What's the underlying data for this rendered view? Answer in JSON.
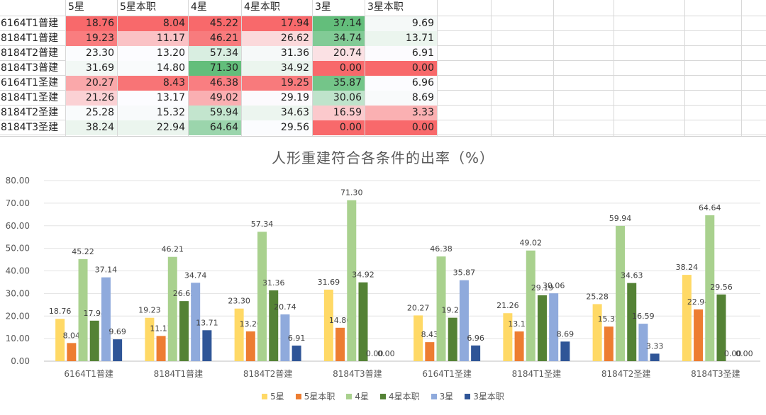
{
  "sheet": {
    "headers": [
      "5星",
      "5星本职",
      "4星",
      "4星本职",
      "3星",
      "3星本职"
    ]
  },
  "chart_data": {
    "type": "bar",
    "title": "人形重建符合各条件的出率（%）",
    "categories": [
      "6164T1普建",
      "8184T1普建",
      "8184T2普建",
      "8184T3普建",
      "6164T1圣建",
      "8184T1圣建",
      "8184T2圣建",
      "8184T3圣建"
    ],
    "series": [
      {
        "name": "5星",
        "color": "#FFD966",
        "values": [
          18.76,
          19.23,
          23.3,
          31.69,
          20.27,
          21.26,
          25.28,
          38.24
        ]
      },
      {
        "name": "5星本职",
        "color": "#ED7D31",
        "values": [
          8.04,
          11.17,
          13.2,
          14.8,
          8.43,
          13.17,
          15.32,
          22.94
        ]
      },
      {
        "name": "4星",
        "color": "#A9D18E",
        "values": [
          45.22,
          46.21,
          57.34,
          71.3,
          46.38,
          49.02,
          59.94,
          64.64
        ]
      },
      {
        "name": "4星本职",
        "color": "#548235",
        "values": [
          17.94,
          26.62,
          31.36,
          34.92,
          19.25,
          29.19,
          34.63,
          29.56
        ]
      },
      {
        "name": "3星",
        "color": "#8FAADC",
        "values": [
          37.14,
          34.74,
          20.74,
          0.0,
          35.87,
          30.06,
          16.59,
          0.0
        ]
      },
      {
        "name": "3星本职",
        "color": "#2F5597",
        "values": [
          9.69,
          13.71,
          6.91,
          0.0,
          6.96,
          8.69,
          3.33,
          0.0
        ]
      }
    ],
    "ylim": [
      0,
      80
    ],
    "yticks": [
      "0.00",
      "10.00",
      "20.00",
      "30.00",
      "40.00",
      "50.00",
      "60.00",
      "70.00",
      "80.00"
    ],
    "grid": true,
    "legend": "bottom"
  }
}
